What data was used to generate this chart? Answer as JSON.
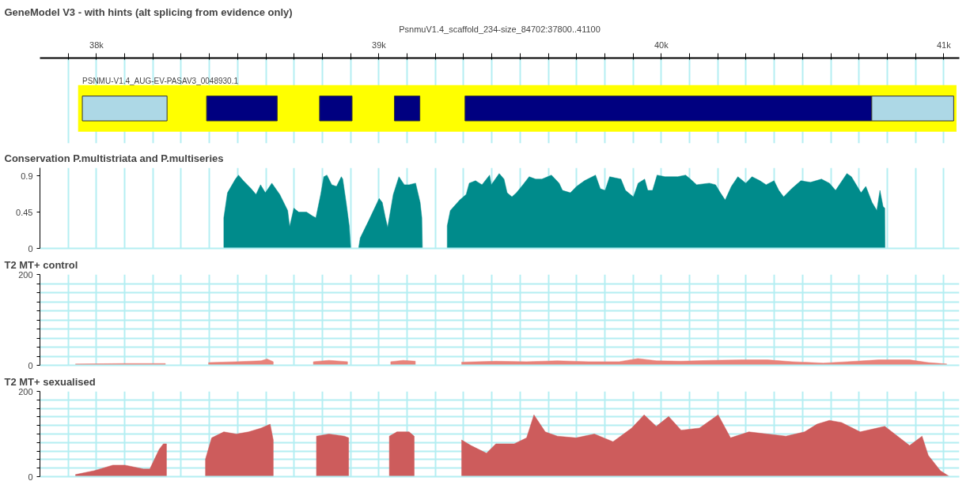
{
  "chart_data": [
    {
      "type": "bar",
      "orientation": "horizontal",
      "title": "GeneModel V3 - with hints (alt splicing from evidence only)",
      "xlabel": "PsnmuV1.4_scaffold_234-size_84702:37800..41100",
      "tick_labels": "x",
      "grid": "x",
      "xlim": [
        37800,
        41055
      ],
      "xticks": [
        {
          "value": 37900,
          "label": null
        },
        {
          "value": 38000,
          "label": "38k"
        },
        {
          "value": 38100,
          "label": null
        },
        {
          "value": 38200,
          "label": null
        },
        {
          "value": 38300,
          "label": null
        },
        {
          "value": 38400,
          "label": null
        },
        {
          "value": 38500,
          "label": null
        },
        {
          "value": 38600,
          "label": null
        },
        {
          "value": 38700,
          "label": null
        },
        {
          "value": 38800,
          "label": null
        },
        {
          "value": 38900,
          "label": null
        },
        {
          "value": 39000,
          "label": "39k"
        },
        {
          "value": 39100,
          "label": null
        },
        {
          "value": 39200,
          "label": null
        },
        {
          "value": 39300,
          "label": null
        },
        {
          "value": 39400,
          "label": null
        },
        {
          "value": 39500,
          "label": null
        },
        {
          "value": 39600,
          "label": null
        },
        {
          "value": 39700,
          "label": null
        },
        {
          "value": 39800,
          "label": null
        },
        {
          "value": 39900,
          "label": null
        },
        {
          "value": 40000,
          "label": "40k"
        },
        {
          "value": 40100,
          "label": null
        },
        {
          "value": 40200,
          "label": null
        },
        {
          "value": 40300,
          "label": null
        },
        {
          "value": 40400,
          "label": null
        },
        {
          "value": 40500,
          "label": null
        },
        {
          "value": 40600,
          "label": null
        },
        {
          "value": 40700,
          "label": null
        },
        {
          "value": 40800,
          "label": null
        },
        {
          "value": 40900,
          "label": null
        },
        {
          "value": 41000,
          "label": "41k"
        }
      ],
      "categories": [
        null
      ],
      "series": [
        {
          "color": "#add8e6",
          "base": [
            37950
          ],
          "values": [
            300
          ]
        },
        {
          "color": "#000080",
          "base": [
            38390
          ],
          "values": [
            250
          ]
        },
        {
          "color": "#000080",
          "base": [
            38790
          ],
          "values": [
            115
          ]
        },
        {
          "color": "#000080",
          "base": [
            39055
          ],
          "values": [
            90
          ]
        },
        {
          "color": "#000080",
          "base": [
            39305
          ],
          "values": [
            1440
          ]
        },
        {
          "color": "#add8e6",
          "base": [
            40745
          ],
          "values": [
            290
          ]
        }
      ],
      "bands": [
        {
          "axis": "x",
          "from": 37935,
          "to": 41045,
          "color": "#ffff00"
        }
      ],
      "annotations": [
        "PSNMU-V1.4_AUG-EV-PASAV3_0048930.1"
      ]
    },
    {
      "type": "area",
      "title": "Conservation P.multistriata and P.multiseries",
      "tick_labels": "y",
      "grid": "x",
      "xlim": [
        37800,
        41055
      ],
      "xticks": [
        37900,
        38000,
        38100,
        38200,
        38300,
        38400,
        38500,
        38600,
        38700,
        38800,
        38900,
        39000,
        39100,
        39200,
        39300,
        39400,
        39500,
        39600,
        39700,
        39800,
        39900,
        40000,
        40100,
        40200,
        40300,
        40400,
        40500,
        40600,
        40700,
        40800,
        40900,
        41000
      ],
      "ylim": [
        0,
        1.0
      ],
      "yticks": [
        0,
        0.45,
        0.9
      ],
      "x": [
        38451,
        38464,
        38492,
        38503,
        38520,
        38548,
        38565,
        38581,
        38598,
        38621,
        38649,
        38677,
        38684,
        38699,
        38716,
        38744,
        38766,
        38777,
        38794,
        38805,
        38816,
        38833,
        38850,
        38867,
        38872,
        38884,
        38895,
        38900,
        38914,
        38928,
        38934,
        38962,
        39001,
        39012,
        39023,
        39031,
        39051,
        39071,
        39090,
        39107,
        39130,
        39146,
        39152,
        39154,
        39200,
        39242,
        39253,
        39286,
        39309,
        39320,
        39342,
        39365,
        39392,
        39398,
        39426,
        39443,
        39454,
        39471,
        39487,
        39510,
        39532,
        39555,
        39577,
        39611,
        39638,
        39650,
        39678,
        39700,
        39728,
        39767,
        39784,
        39801,
        39817,
        39857,
        39873,
        39901,
        39918,
        39941,
        39952,
        39969,
        39985,
        40013,
        40058,
        40086,
        40103,
        40125,
        40170,
        40192,
        40209,
        40226,
        40248,
        40271,
        40299,
        40321,
        40349,
        40371,
        40399,
        40416,
        40433,
        40461,
        40494,
        40528,
        40567,
        40595,
        40617,
        40657,
        40673,
        40707,
        40724,
        40746,
        40763,
        40774,
        40785,
        40791,
        40792
      ],
      "series": [
        {
          "color": "#008b8b",
          "values": [
            0.38,
            0.69,
            0.86,
            0.91,
            0.84,
            0.74,
            0.67,
            0.79,
            0.69,
            0.81,
            0.67,
            0.47,
            0.27,
            0.5,
            0.45,
            0.45,
            0.4,
            0.38,
            0.67,
            0.89,
            0.91,
            0.79,
            0.77,
            0.89,
            0.86,
            0.57,
            0.28,
            0.01,
            null,
            0.0,
            0.13,
            0.33,
            0.62,
            0.57,
            0.38,
            0.26,
            0.67,
            0.89,
            0.79,
            0.79,
            0.81,
            0.57,
            0.38,
            0.0,
            null,
            0.28,
            0.47,
            0.6,
            0.67,
            0.81,
            0.84,
            0.79,
            0.91,
            0.79,
            0.93,
            0.86,
            0.69,
            0.64,
            0.69,
            0.79,
            0.89,
            0.86,
            0.86,
            0.91,
            0.81,
            0.72,
            0.69,
            0.77,
            0.84,
            0.91,
            0.74,
            0.72,
            0.89,
            0.86,
            0.72,
            0.64,
            0.81,
            0.86,
            0.72,
            0.72,
            0.91,
            0.89,
            0.89,
            0.91,
            0.86,
            0.79,
            0.81,
            0.79,
            0.69,
            0.6,
            0.77,
            0.89,
            0.81,
            0.89,
            0.84,
            0.79,
            0.84,
            0.72,
            0.64,
            0.74,
            0.84,
            0.82,
            0.86,
            0.81,
            0.72,
            0.93,
            0.89,
            0.69,
            0.77,
            0.57,
            0.47,
            0.72,
            0.52,
            0.5,
            0.01
          ]
        }
      ]
    },
    {
      "type": "area",
      "title": "T2 MT+ control",
      "tick_labels": "y",
      "grid": true,
      "xlim": [
        37800,
        41055
      ],
      "xticks": [
        37900,
        38000,
        38100,
        38200,
        38300,
        38400,
        38500,
        38600,
        38700,
        38800,
        38900,
        39000,
        39100,
        39200,
        39300,
        39400,
        39500,
        39600,
        39700,
        39800,
        39900,
        40000,
        40100,
        40200,
        40300,
        40400,
        40500,
        40600,
        40700,
        40800,
        40900,
        41000
      ],
      "ylim": [
        0,
        200
      ],
      "yticks": [
        0,
        {
          "value": 20,
          "label": null
        },
        {
          "value": 40,
          "label": null
        },
        {
          "value": 60,
          "label": null
        },
        {
          "value": 80,
          "label": null
        },
        {
          "value": 100,
          "label": null
        },
        {
          "value": 120,
          "label": null
        },
        {
          "value": 140,
          "label": null
        },
        {
          "value": 160,
          "label": null
        },
        {
          "value": 180,
          "label": null
        },
        200
      ],
      "x": [
        37926,
        38100,
        38244,
        38300,
        38397,
        38495,
        38583,
        38604,
        38626,
        38700,
        38768,
        38823,
        38889,
        38950,
        39042,
        39086,
        39129,
        39200,
        39293,
        39414,
        39523,
        39632,
        39742,
        39851,
        39917,
        39982,
        40070,
        40179,
        40288,
        40376,
        40463,
        40573,
        40660,
        40770,
        40879,
        40945,
        41010
      ],
      "series": [
        {
          "color": "#e8837a",
          "values": [
            3,
            4,
            4,
            null,
            6,
            8,
            10,
            14,
            8,
            null,
            8,
            11,
            8,
            null,
            8,
            11,
            9,
            null,
            7,
            9,
            8,
            10,
            8,
            8,
            15,
            10,
            9,
            11,
            12,
            12,
            8,
            5,
            8,
            12,
            12,
            6,
            3
          ]
        }
      ]
    },
    {
      "type": "area",
      "title": "T2 MT+ sexualised",
      "tick_labels": "y",
      "grid": true,
      "xlim": [
        37800,
        41055
      ],
      "xticks": [
        37900,
        38000,
        38100,
        38200,
        38300,
        38400,
        38500,
        38600,
        38700,
        38800,
        38900,
        39000,
        39100,
        39200,
        39300,
        39400,
        39500,
        39600,
        39700,
        39800,
        39900,
        40000,
        40100,
        40200,
        40300,
        40400,
        40500,
        40600,
        40700,
        40800,
        40900,
        41000
      ],
      "ylim": [
        0,
        200
      ],
      "yticks": [
        0,
        {
          "value": 20,
          "label": null
        },
        {
          "value": 40,
          "label": null
        },
        {
          "value": 60,
          "label": null
        },
        {
          "value": 80,
          "label": null
        },
        {
          "value": 100,
          "label": null
        },
        {
          "value": 120,
          "label": null
        },
        {
          "value": 140,
          "label": null
        },
        {
          "value": 160,
          "label": null
        },
        {
          "value": 180,
          "label": null
        },
        200
      ],
      "x": [
        37926,
        37992,
        38058,
        38101,
        38167,
        38189,
        38222,
        38237,
        38248,
        38300,
        38386,
        38408,
        38451,
        38495,
        38539,
        38583,
        38615,
        38626,
        38700,
        38779,
        38823,
        38878,
        38893,
        38950,
        39037,
        39064,
        39107,
        39125,
        39200,
        39293,
        39326,
        39381,
        39414,
        39479,
        39523,
        39549,
        39589,
        39632,
        39698,
        39763,
        39829,
        39895,
        39939,
        39982,
        40026,
        40070,
        40135,
        40201,
        40245,
        40310,
        40376,
        40441,
        40507,
        40551,
        40595,
        40638,
        40704,
        40791,
        40879,
        40923,
        40945,
        40988,
        41021
      ],
      "series": [
        {
          "color": "#cd5c5c",
          "values": [
            5,
            14,
            27,
            27,
            18,
            18,
            64,
            77,
            77,
            null,
            41,
            91,
            105,
            100,
            105,
            114,
            123,
            86,
            null,
            95,
            100,
            95,
            91,
            null,
            95,
            105,
            105,
            95,
            null,
            86,
            73,
            55,
            77,
            77,
            91,
            145,
            105,
            95,
            91,
            100,
            82,
            114,
            145,
            118,
            141,
            109,
            114,
            145,
            91,
            105,
            100,
            95,
            105,
            123,
            132,
            127,
            105,
            118,
            73,
            95,
            50,
            14,
            0
          ]
        }
      ]
    }
  ]
}
